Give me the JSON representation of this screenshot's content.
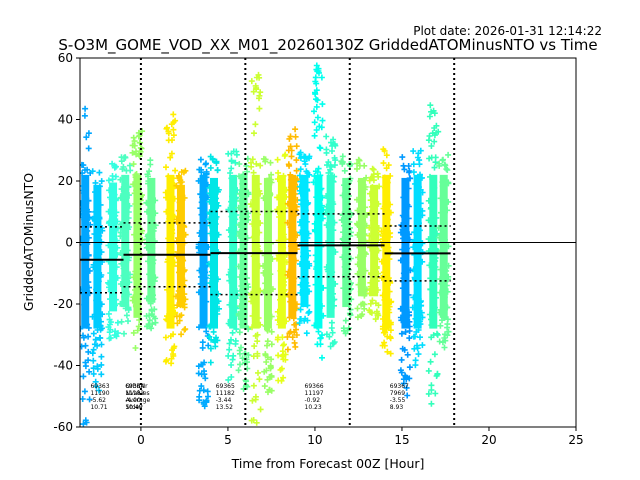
{
  "chart_data": {
    "type": "scatter",
    "title": "S-O3M_GOME_VOD_XX_M01_20260130Z GriddedATOMinusNTO vs Time",
    "plot_date": "Plot date: 2026-01-31 12:14:22",
    "xlabel": "Time from Forecast 00Z [Hour]",
    "ylabel": "GriddedATOMinusNTO",
    "xlim": [
      -3.5,
      25
    ],
    "ylim": [
      -60,
      60
    ],
    "xticks": [
      0,
      5,
      10,
      15,
      20,
      25
    ],
    "yticks": [
      -60,
      -40,
      -20,
      0,
      20,
      40,
      60
    ],
    "vlines": [
      0,
      6,
      12,
      18
    ],
    "zero_line": 0,
    "colors": {
      "ramp": [
        "#0080ff",
        "#00ccff",
        "#33ffcc",
        "#99ff66",
        "#ccff33",
        "#ffff00",
        "#ffcc00",
        "#ffaa00"
      ],
      "stat_line": "#000000"
    },
    "strips": [
      {
        "x": -3.2,
        "min": -60,
        "max": 44,
        "color": "#00a6ff"
      },
      {
        "x": -2.5,
        "min": -50,
        "max": 25,
        "color": "#00ccff"
      },
      {
        "x": -1.6,
        "min": -32,
        "max": 26,
        "color": "#33ffe0"
      },
      {
        "x": -0.9,
        "min": -30,
        "max": 30,
        "color": "#4dffc0"
      },
      {
        "x": -0.2,
        "min": -35,
        "max": 37,
        "color": "#99ff66"
      },
      {
        "x": 0.6,
        "min": -28,
        "max": 28,
        "color": "#66ff99"
      },
      {
        "x": 1.7,
        "min": -40,
        "max": 42,
        "color": "#ffee00"
      },
      {
        "x": 2.3,
        "min": -30,
        "max": 25,
        "color": "#ffcc00"
      },
      {
        "x": 3.6,
        "min": -55,
        "max": 30,
        "color": "#00aaff"
      },
      {
        "x": 4.2,
        "min": -40,
        "max": 28,
        "color": "#00e6e6"
      },
      {
        "x": 5.3,
        "min": -45,
        "max": 30,
        "color": "#33ffcc"
      },
      {
        "x": 5.9,
        "min": -50,
        "max": 30,
        "color": "#66ff99"
      },
      {
        "x": 6.6,
        "min": -60,
        "max": 57,
        "color": "#ccff33"
      },
      {
        "x": 7.3,
        "min": -50,
        "max": 28,
        "color": "#99ff66"
      },
      {
        "x": 8.1,
        "min": -45,
        "max": 30,
        "color": "#e6ff1a"
      },
      {
        "x": 8.7,
        "min": -35,
        "max": 38,
        "color": "#ffbb00"
      },
      {
        "x": 9.4,
        "min": -30,
        "max": 30,
        "color": "#00e6ff"
      },
      {
        "x": 10.2,
        "min": -40,
        "max": 58,
        "color": "#00ffee"
      },
      {
        "x": 10.9,
        "min": -35,
        "max": 35,
        "color": "#33ffcc"
      },
      {
        "x": 11.8,
        "min": -30,
        "max": 28,
        "color": "#66ff99"
      },
      {
        "x": 12.7,
        "min": -25,
        "max": 28,
        "color": "#99ff66"
      },
      {
        "x": 13.4,
        "min": -25,
        "max": 25,
        "color": "#ccff33"
      },
      {
        "x": 14.1,
        "min": -40,
        "max": 32,
        "color": "#ffee00"
      },
      {
        "x": 15.2,
        "min": -50,
        "max": 28,
        "color": "#0099ff"
      },
      {
        "x": 15.9,
        "min": -40,
        "max": 30,
        "color": "#00ddff"
      },
      {
        "x": 16.8,
        "min": -55,
        "max": 45,
        "color": "#33ffbb"
      },
      {
        "x": 17.4,
        "min": -35,
        "max": 30,
        "color": "#66ff99"
      }
    ],
    "bins": [
      {
        "x0": -3.5,
        "x1": -1,
        "average": -5.62,
        "stdev": 10.71
      },
      {
        "x0": -1,
        "x1": 4,
        "average": -4.0,
        "stdev": 10.4
      },
      {
        "x0": 4,
        "x1": 9,
        "average": -3.44,
        "stdev": 13.52
      },
      {
        "x0": 9,
        "x1": 14,
        "average": -0.92,
        "stdev": 10.23
      },
      {
        "x0": 14,
        "x1": 17.8,
        "average": -3.55,
        "stdev": 8.93
      }
    ],
    "stat_boxes": [
      {
        "x": -2.9,
        "lines": [
          "69363",
          "11190",
          "-5.62",
          "10.71"
        ]
      },
      {
        "x": -0.9,
        "lines": [
          "69364",
          "11182",
          "-4.00",
          "10.40"
        ]
      },
      {
        "x": 4.3,
        "lines": [
          "69365",
          "11182",
          "-3.44",
          "13.52"
        ]
      },
      {
        "x": 9.4,
        "lines": [
          "69366",
          "11197",
          "-0.92",
          "10.23"
        ]
      },
      {
        "x": 14.3,
        "lines": [
          "69367",
          "7969",
          "-3.55",
          "8.93"
        ]
      }
    ],
    "stat_labels": [
      "OrbitNr",
      "NValues",
      "Average",
      "Stdev"
    ]
  }
}
